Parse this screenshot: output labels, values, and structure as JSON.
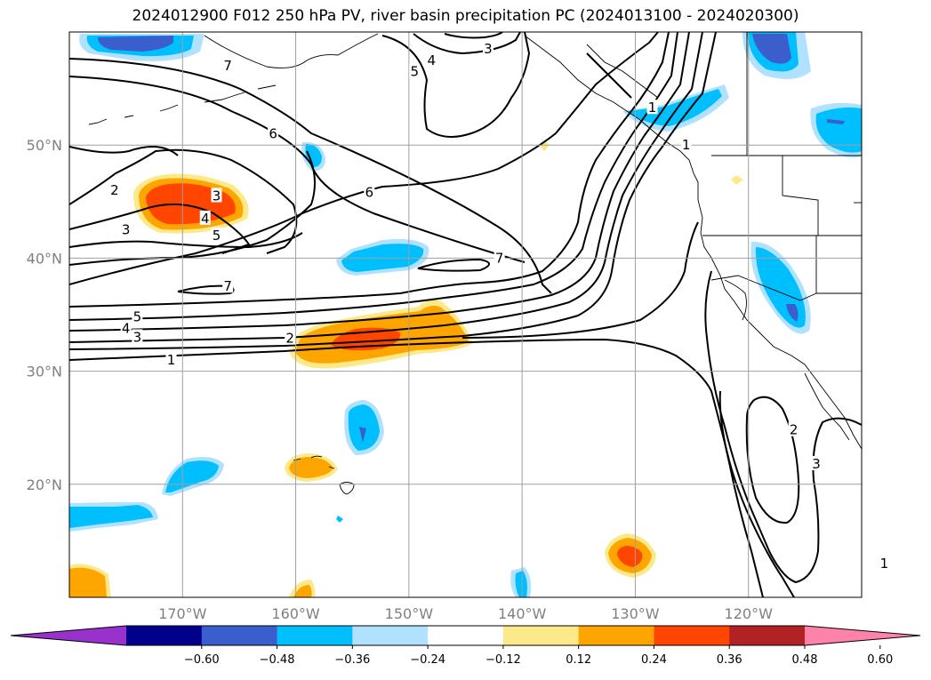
{
  "title": "2024012900 F012 250 hPa PV, river basin precipitation PC (2024013100 - 2024020300)",
  "map": {
    "lon_range": [
      -180,
      -110
    ],
    "lat_range": [
      10,
      60
    ],
    "lat_ticks": [
      {
        "value": 50,
        "label": "50°N"
      },
      {
        "value": 40,
        "label": "40°N"
      },
      {
        "value": 30,
        "label": "30°N"
      },
      {
        "value": 20,
        "label": "20°N"
      }
    ],
    "lon_ticks": [
      {
        "value": -170,
        "label": "170°W"
      },
      {
        "value": -160,
        "label": "160°W"
      },
      {
        "value": -150,
        "label": "150°W"
      },
      {
        "value": -140,
        "label": "140°W"
      },
      {
        "value": -130,
        "label": "130°W"
      },
      {
        "value": -120,
        "label": "120°W"
      }
    ],
    "gridlines": true
  },
  "pv_contours": {
    "color": "#000000",
    "labels": [
      {
        "text": "7",
        "lon": -166,
        "lat": 57
      },
      {
        "text": "6",
        "lon": -162,
        "lat": 51
      },
      {
        "text": "2",
        "lon": -176,
        "lat": 46
      },
      {
        "text": "3",
        "lon": -175,
        "lat": 42.5
      },
      {
        "text": "3",
        "lon": -167,
        "lat": 45.5
      },
      {
        "text": "4",
        "lon": -168,
        "lat": 43.5
      },
      {
        "text": "5",
        "lon": -167,
        "lat": 42
      },
      {
        "text": "6",
        "lon": -153.5,
        "lat": 45.8
      },
      {
        "text": "7",
        "lon": -142,
        "lat": 40
      },
      {
        "text": "7",
        "lon": -166,
        "lat": 37.5
      },
      {
        "text": "5",
        "lon": -174,
        "lat": 34.8
      },
      {
        "text": "4",
        "lon": -175,
        "lat": 33.8
      },
      {
        "text": "3",
        "lon": -174,
        "lat": 33
      },
      {
        "text": "1",
        "lon": -171,
        "lat": 31
      },
      {
        "text": "2",
        "lon": -160.5,
        "lat": 32.9
      },
      {
        "text": "3",
        "lon": -143,
        "lat": 58.5
      },
      {
        "text": "4",
        "lon": -148,
        "lat": 57.5
      },
      {
        "text": "5",
        "lon": -149.5,
        "lat": 56.5
      },
      {
        "text": "2",
        "lon": -116,
        "lat": 24.8
      },
      {
        "text": "3",
        "lon": -114,
        "lat": 21.8
      },
      {
        "text": "1",
        "lon": -108,
        "lat": 13
      },
      {
        "text": "1",
        "lon": -128.5,
        "lat": 53.3
      },
      {
        "text": "1",
        "lon": -125.5,
        "lat": 50
      }
    ]
  },
  "colorbar": {
    "colors": [
      "#9932cc",
      "#00008b",
      "#3a5fcd",
      "#00bfff",
      "#b0e2ff",
      "#ffffff",
      "#fce98a",
      "#ffa500",
      "#ff4500",
      "#b22222",
      "#ff82ab"
    ],
    "tick_labels": [
      "−0.60",
      "−0.48",
      "−0.36",
      "−0.24",
      "−0.12",
      "0.12",
      "0.24",
      "0.36",
      "0.48",
      "0.60"
    ],
    "extend": "both"
  }
}
